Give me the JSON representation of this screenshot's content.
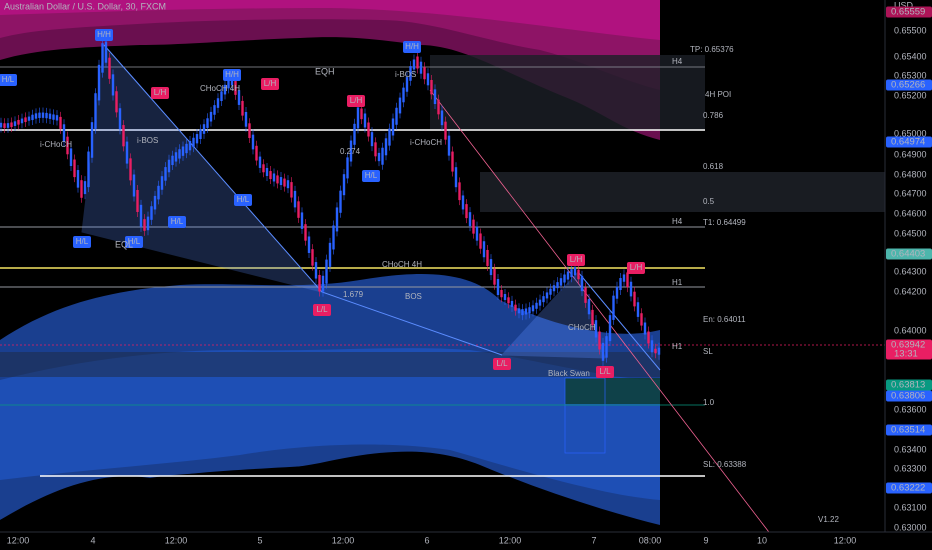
{
  "header": {
    "title": "Australian Dollar / U.S. Dollar, 30, FXCM",
    "currency": "USD"
  },
  "price_axis": {
    "labels": [
      "0.65500",
      "0.65400",
      "0.65300",
      "0.65200",
      "0.65000",
      "0.64900",
      "0.64800",
      "0.64700",
      "0.64600",
      "0.64500",
      "0.64300",
      "0.64200",
      "0.64000",
      "0.63600",
      "0.63400",
      "0.63300",
      "0.63100",
      "0.63000"
    ]
  },
  "price_tags": [
    {
      "text": "0.65559",
      "color": "#ad1457"
    },
    {
      "text": "0.65266",
      "color": "#2962ff"
    },
    {
      "text": "0.64974",
      "color": "#2962ff"
    },
    {
      "text": "0.64403",
      "color": "#4db6ac"
    },
    {
      "text": "0.63942",
      "sub": "13:31",
      "color": "#e91e63"
    },
    {
      "text": "0.63813",
      "color": "#089981"
    },
    {
      "text": "0.63806",
      "color": "#2962ff"
    },
    {
      "text": "0.63514",
      "color": "#2962ff"
    },
    {
      "text": "0.63222",
      "color": "#2962ff"
    }
  ],
  "time_axis": [
    "12:00",
    "4",
    "12:00",
    "5",
    "12:00",
    "6",
    "12:00",
    "7",
    "08:00",
    "9",
    "10",
    "12:00"
  ],
  "swing_labels": [
    "H/H",
    "H/H",
    "H/H",
    "L/H",
    "L/H",
    "H/L",
    "H/L",
    "L/H",
    "L/L",
    "L/L",
    "H/L",
    "L/H",
    "L/H",
    "H/L",
    "L/L",
    "H/L",
    "H/L"
  ],
  "annotations": [
    "EQH",
    "EQL",
    "0.274",
    "1.679",
    "TP: 0.65376",
    "H4",
    "4H POI",
    "0.786",
    "0.618",
    "0.5",
    "H4",
    "T1: 0.64499",
    "H1",
    "En: 0.64011",
    "H1",
    "SL",
    "1.0",
    "SL: 0.63388",
    "Black Swan",
    "CHoCH 4H",
    "i-BOS",
    "i-CHoCH",
    "i-BOS",
    "CHoCH 4H",
    "BOS",
    "i-CHoCH",
    "CHoCH",
    "V1.22"
  ]
}
